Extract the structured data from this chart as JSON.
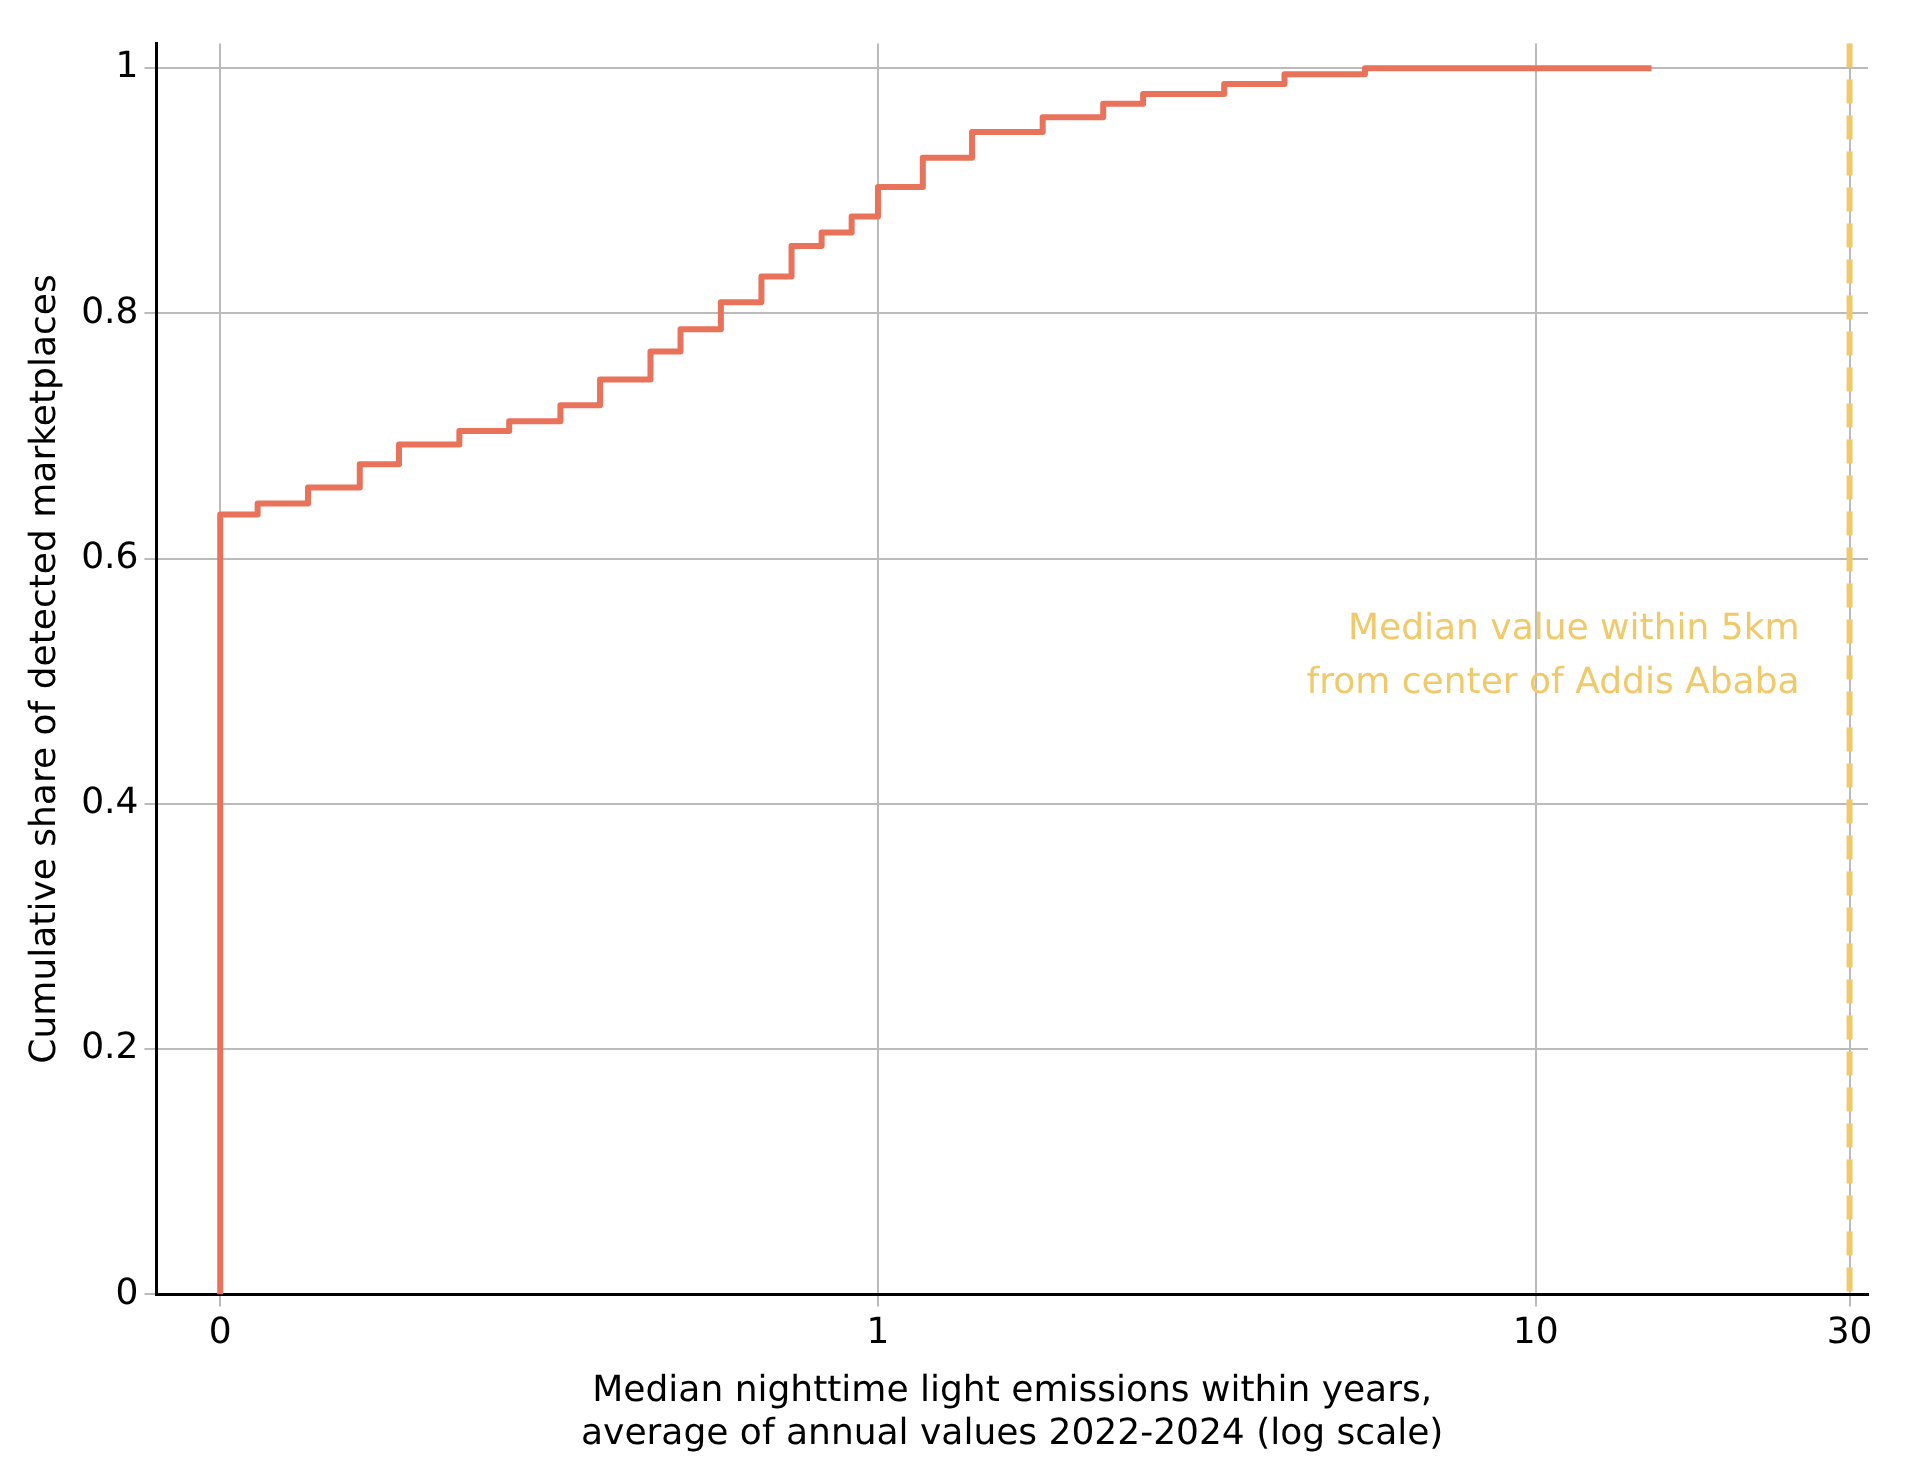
{
  "chart_data": {
    "type": "step",
    "xlabel": "Median nighttime light emissions within years,\naverage of annual values 2022-2024 (log scale)",
    "ylabel": "Cumulative share of detected marketplaces",
    "log": "x",
    "xlim": [
      0.08,
      32
    ],
    "xticks": [
      {
        "value": 0.1,
        "label": "0"
      },
      1,
      10,
      30
    ],
    "ylim": [
      0,
      1.02
    ],
    "yticks": [
      0,
      0.2,
      0.4,
      0.6,
      0.8,
      1
    ],
    "grid": true,
    "legend": false,
    "series": [
      {
        "color": "#e8735a",
        "x": [
          0.1,
          0.1,
          0.114,
          0.136,
          0.163,
          0.187,
          0.231,
          0.275,
          0.329,
          0.378,
          0.451,
          0.501,
          0.577,
          0.665,
          0.739,
          0.821,
          0.912,
          1,
          1.17,
          1.39,
          1.78,
          2.2,
          2.53,
          3.36,
          4.15,
          5.5,
          8.39,
          15
        ],
        "values": [
          0,
          0.632,
          0.636,
          0.645,
          0.658,
          0.677,
          0.693,
          0.704,
          0.712,
          0.725,
          0.746,
          0.769,
          0.787,
          0.809,
          0.83,
          0.855,
          0.866,
          0.879,
          0.903,
          0.927,
          0.948,
          0.96,
          0.971,
          0.979,
          0.987,
          0.995,
          1,
          1
        ]
      }
    ],
    "ref_lines": [
      {
        "axis": "x",
        "value": 30,
        "label": "Median value within 5km\nfrom center of Addis Ababa",
        "color": "#f0c96a",
        "line_style": "dashed"
      }
    ]
  }
}
